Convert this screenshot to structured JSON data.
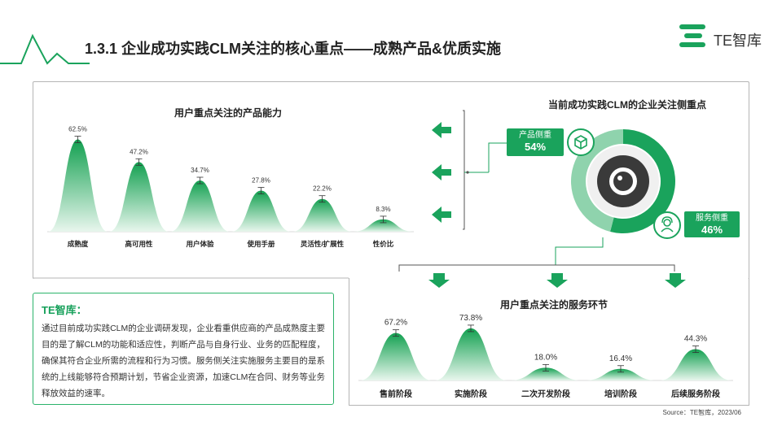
{
  "header": {
    "title": "1.3.1 企业成功实践CLM关注的核心重点——成熟产品&优质实施",
    "logo_text": "TE智库"
  },
  "colors": {
    "accent": "#1aa35c",
    "dark_green": "#14894c",
    "light_green": "#e3f5ea"
  },
  "focus_panel": {
    "title": "当前成功实践CLM的企业关注侧重点",
    "product_label": "产品侧重",
    "product_value": "54%",
    "service_label": "服务侧重",
    "service_value": "46%",
    "icons": [
      "box-icon",
      "person-icon",
      "eye-icon",
      "arrow-left-icon",
      "arrow-down-icon"
    ]
  },
  "textbox": {
    "heading": "TE智库：",
    "body": "通过目前成功实践CLM的企业调研发现，企业看重供应商的产品成熟度主要目的是了解CLM的功能和适应性，判断产品与自身行业、业务的匹配程度，确保其符合企业所需的流程和行为习惯。服务侧关注实施服务主要目的是系统的上线能够符合预期计划，节省企业资源，加速CLM在合同、财务等业务释放效益的速率。"
  },
  "source": "Source：TE智库，2023/06",
  "chart_data": [
    {
      "type": "area",
      "title": "用户重点关注的产品能力",
      "categories": [
        "成熟度",
        "高可用性",
        "用户体验",
        "使用手册",
        "灵活性/扩展性",
        "性价比"
      ],
      "values": [
        62.5,
        47.2,
        34.7,
        27.8,
        22.2,
        8.3
      ],
      "value_labels": [
        "62.5%",
        "47.2%",
        "34.7%",
        "27.8%",
        "22.2%",
        "8.3%"
      ],
      "ylim": [
        0,
        65
      ],
      "grid": false
    },
    {
      "type": "area",
      "title": "用户重点关注的服务环节",
      "categories": [
        "售前阶段",
        "实施阶段",
        "二次开发阶段",
        "培训阶段",
        "后续服务阶段"
      ],
      "values": [
        67.2,
        73.8,
        18.0,
        16.4,
        44.3
      ],
      "value_labels": [
        "67.2%",
        "73.8%",
        "18.0%",
        "16.4%",
        "44.3%"
      ],
      "ylim": [
        0,
        76
      ],
      "grid": false
    },
    {
      "type": "pie",
      "categories": [
        "产品侧重",
        "服务侧重"
      ],
      "values": [
        54,
        46
      ]
    }
  ]
}
